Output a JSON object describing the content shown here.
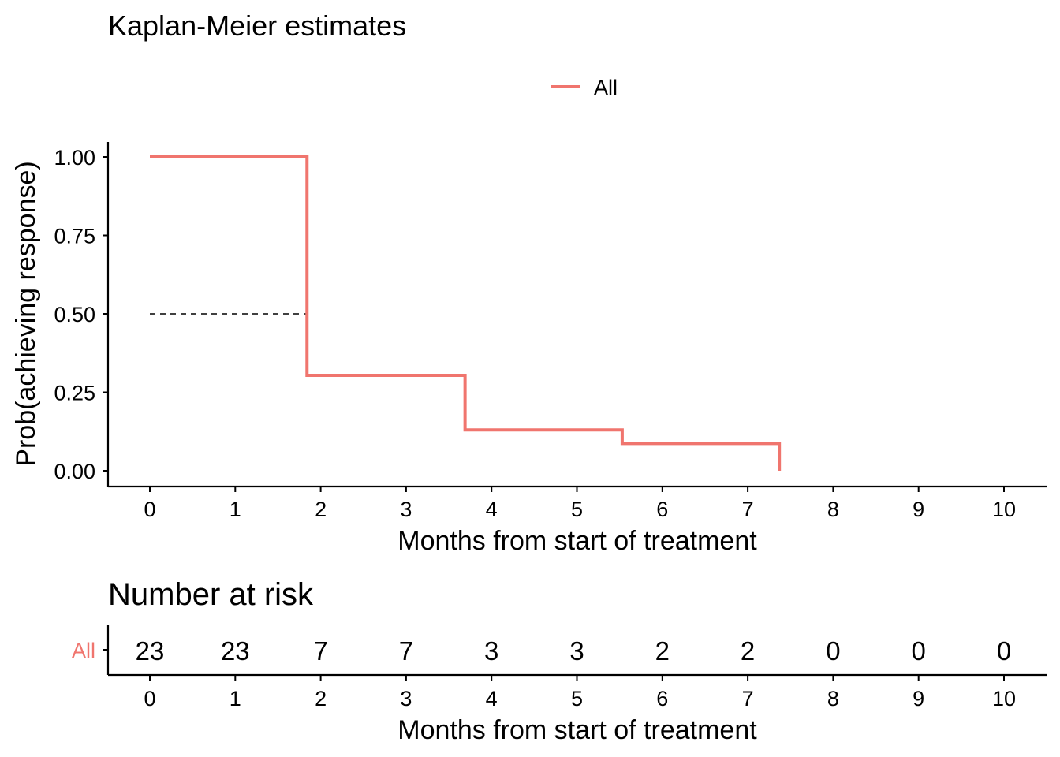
{
  "chart_data": [
    {
      "type": "line",
      "title": "Kaplan-Meier estimates",
      "xlabel": "Months from start of treatment",
      "ylabel": "Prob(achieving response)",
      "xlim": [
        0,
        10
      ],
      "ylim": [
        0,
        1
      ],
      "x_ticks": [
        "0",
        "1",
        "2",
        "3",
        "4",
        "5",
        "6",
        "7",
        "8",
        "9",
        "10"
      ],
      "y_ticks": [
        "0.00",
        "0.25",
        "0.50",
        "0.75",
        "1.00"
      ],
      "grid": false,
      "legend_position": "top",
      "series": [
        {
          "name": "All",
          "color": "#f0756e",
          "step": true,
          "x": [
            0,
            1.84,
            3.69,
            5.53,
            7.37
          ],
          "y": [
            1.0,
            0.304,
            0.13,
            0.087,
            0.0
          ]
        }
      ],
      "median_line": {
        "y": 0.5,
        "x": 1.84,
        "style": "dashed"
      }
    },
    {
      "type": "table",
      "title": "Number at risk",
      "xlabel": "Months from start of treatment",
      "x_ticks": [
        "0",
        "1",
        "2",
        "3",
        "4",
        "5",
        "6",
        "7",
        "8",
        "9",
        "10"
      ],
      "rows": [
        {
          "label": "All",
          "color": "#f0756e",
          "values": [
            "23",
            "23",
            "7",
            "7",
            "3",
            "3",
            "2",
            "2",
            "0",
            "0",
            "0"
          ]
        }
      ]
    }
  ]
}
